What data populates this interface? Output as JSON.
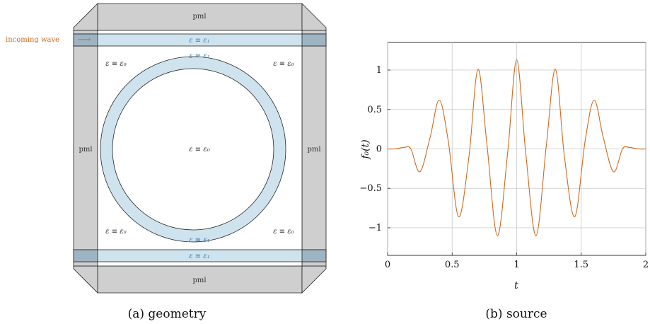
{
  "geometry": {
    "pml_top": "pml",
    "pml_bottom": "pml",
    "pml_left": "pml",
    "pml_right": "pml",
    "incoming_wave": "incoming wave",
    "wave_arrow": "⟶",
    "eps1_top_guide": "ε ≡ ε₁",
    "eps1_ring_top": "ε ≡ ε₁",
    "eps1_ring_bottom": "ε ≡ ε₁",
    "eps1_bottom_guide": "ε ≡ ε₁",
    "eps0_top_left": "ε ≡ ε₀",
    "eps0_top_right": "ε ≡ ε₀",
    "eps0_center": "ε ≡ ε₀",
    "eps0_bottom_left": "ε ≡ ε₀",
    "eps0_bottom_right": "ε ≡ ε₀",
    "caption": "(a) geometry",
    "colors": {
      "pml_fill": "#cfcfcf",
      "pml_corner_fill": "#9fb4c2",
      "dielectric_fill": "#cfe3ee",
      "accent_wave": "#d2691e"
    }
  },
  "chart_data": {
    "type": "line",
    "title": "",
    "xlabel": "t",
    "ylabel": "f₀(t)",
    "xlim": [
      0,
      2
    ],
    "ylim": [
      -1.35,
      1.35
    ],
    "xticks": [
      0,
      0.5,
      1,
      1.5,
      2
    ],
    "xtick_labels": [
      "0",
      "0.5",
      "1",
      "1.5",
      "2"
    ],
    "yticks": [
      -1,
      -0.5,
      0,
      0.5,
      1
    ],
    "ytick_labels": [
      "−1",
      "−0.5",
      "0",
      "0.5",
      "1"
    ],
    "grid": true,
    "color": "#d2691e",
    "series": [
      {
        "x": [
          0,
          0.06,
          0.13,
          0.18,
          0.25,
          0.33,
          0.4,
          0.47,
          0.55,
          0.63,
          0.7,
          0.77,
          0.85,
          0.93,
          1.0,
          1.07,
          1.15,
          1.23,
          1.3,
          1.37,
          1.45,
          1.53,
          1.6,
          1.67,
          1.75,
          1.82,
          1.87,
          1.94,
          2.0
        ],
        "values": [
          0,
          0,
          0.02,
          0.0,
          -0.29,
          0.15,
          0.62,
          0.1,
          -0.86,
          -0.1,
          1.01,
          0.05,
          -1.1,
          -0.05,
          1.13,
          -0.05,
          -1.1,
          0.05,
          1.01,
          -0.1,
          -0.86,
          0.1,
          0.62,
          0.15,
          -0.29,
          0.0,
          0.02,
          0,
          0
        ]
      }
    ],
    "caption": "(b) source"
  }
}
